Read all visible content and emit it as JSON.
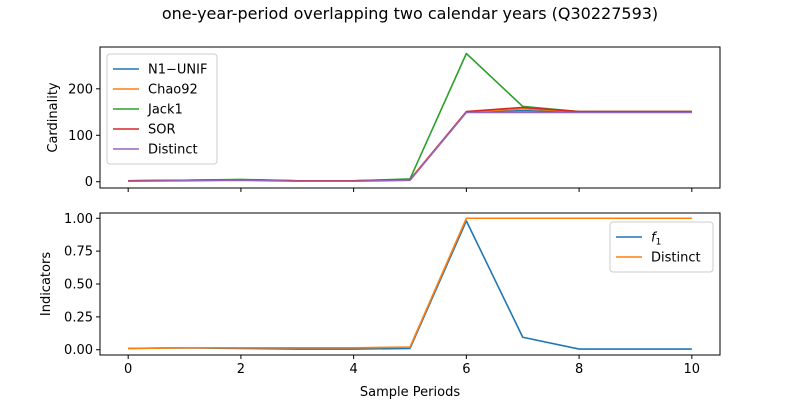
{
  "figure": {
    "title": "one-year-period overlapping two calendar years (Q30227593)",
    "xlabel": "Sample Periods"
  },
  "chart_data": [
    {
      "type": "line",
      "ylabel": "Cardinality",
      "xlim": [
        -0.5,
        10.5
      ],
      "ylim": [
        -13.5,
        290
      ],
      "xticks": [
        0,
        2,
        4,
        6,
        8,
        10
      ],
      "yticks": [
        0,
        100,
        200
      ],
      "legend_position": "upper-left",
      "x": [
        0,
        1,
        2,
        3,
        4,
        5,
        6,
        7,
        8,
        9,
        10
      ],
      "series": [
        {
          "name": "N1−UNIF",
          "color": "#1f77b4",
          "values": [
            2,
            3,
            4,
            2,
            2,
            4,
            150,
            153,
            150,
            150,
            150
          ]
        },
        {
          "name": "Chao92",
          "color": "#ff7f0e",
          "values": [
            2,
            3,
            4,
            2,
            2,
            5,
            150,
            157,
            151,
            151,
            151
          ]
        },
        {
          "name": "Jack1",
          "color": "#2ca02c",
          "values": [
            2,
            3,
            5,
            2,
            2,
            6,
            276,
            162,
            151,
            151,
            151
          ]
        },
        {
          "name": "SOR",
          "color": "#d62728",
          "values": [
            2,
            3,
            4,
            2,
            2,
            4,
            151,
            160,
            151,
            151,
            151
          ]
        },
        {
          "name": "Distinct",
          "color": "#9467bd",
          "values": [
            1,
            2,
            3,
            1,
            1,
            3,
            149,
            149,
            149,
            149,
            149
          ]
        }
      ]
    },
    {
      "type": "line",
      "ylabel": "Indicators",
      "xlim": [
        -0.5,
        10.5
      ],
      "ylim": [
        -0.04,
        1.04
      ],
      "xticks": [
        0,
        2,
        4,
        6,
        8,
        10
      ],
      "yticks": [
        0.0,
        0.25,
        0.5,
        0.75,
        1.0
      ],
      "ytick_labels": [
        "0.00",
        "0.25",
        "0.50",
        "0.75",
        "1.00"
      ],
      "legend_position": "upper-right",
      "x": [
        0,
        1,
        2,
        3,
        4,
        5,
        6,
        7,
        8,
        9,
        10
      ],
      "series": [
        {
          "name": "f1",
          "name_main": "f",
          "name_sub": "1",
          "color": "#1f77b4",
          "values": [
            0.01,
            0.015,
            0.01,
            0.005,
            0.005,
            0.01,
            0.98,
            0.095,
            0.005,
            0.005,
            0.005
          ]
        },
        {
          "name": "Distinct",
          "color": "#ff7f0e",
          "values": [
            0.01,
            0.015,
            0.015,
            0.015,
            0.015,
            0.02,
            1.0,
            1.0,
            1.0,
            1.0,
            1.0
          ]
        }
      ]
    }
  ]
}
